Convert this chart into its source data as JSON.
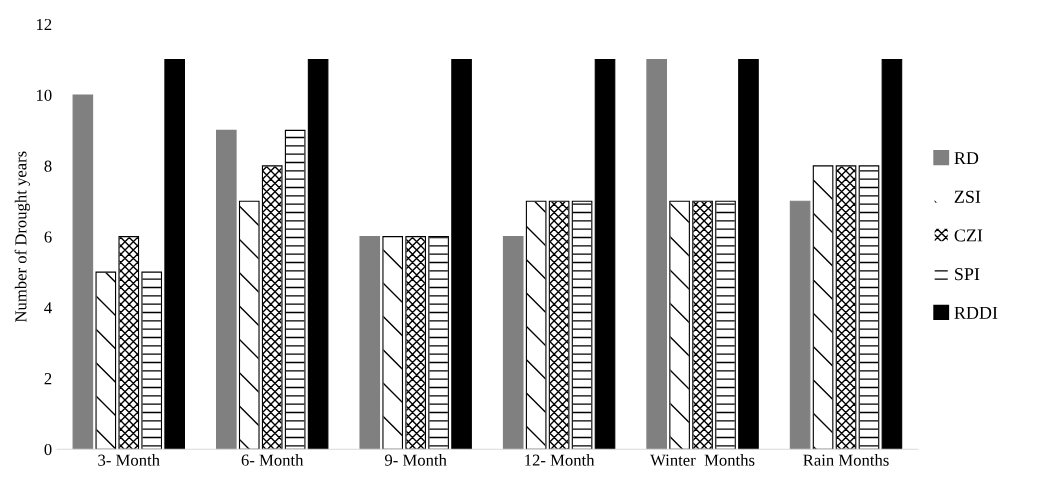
{
  "chart_data": {
    "type": "bar",
    "ylabel": "Number of Drought years",
    "categories": [
      "3- Month",
      "6- Month",
      "9- Month",
      "12- Month",
      "Winter  Months",
      "Rain Months"
    ],
    "series": [
      {
        "name": "RD",
        "color": "#808080",
        "values": [
          10,
          9,
          6,
          6,
          11,
          7
        ]
      },
      {
        "name": "ZSI",
        "color": "#ffffff",
        "values": [
          5,
          7,
          6,
          7,
          7,
          8
        ]
      },
      {
        "name": "CZI",
        "color": "#ffffff",
        "values": [
          6,
          8,
          6,
          7,
          7,
          8
        ]
      },
      {
        "name": "SPI",
        "color": "#ffffff",
        "values": [
          5,
          9,
          6,
          7,
          7,
          8
        ]
      },
      {
        "name": "RDDI",
        "color": "#000000",
        "values": [
          11,
          11,
          11,
          11,
          11,
          11
        ]
      }
    ],
    "ylim": [
      0,
      12
    ],
    "yticks": [
      0,
      2,
      4,
      6,
      8,
      10,
      12
    ],
    "grid": false,
    "legend": "right"
  }
}
